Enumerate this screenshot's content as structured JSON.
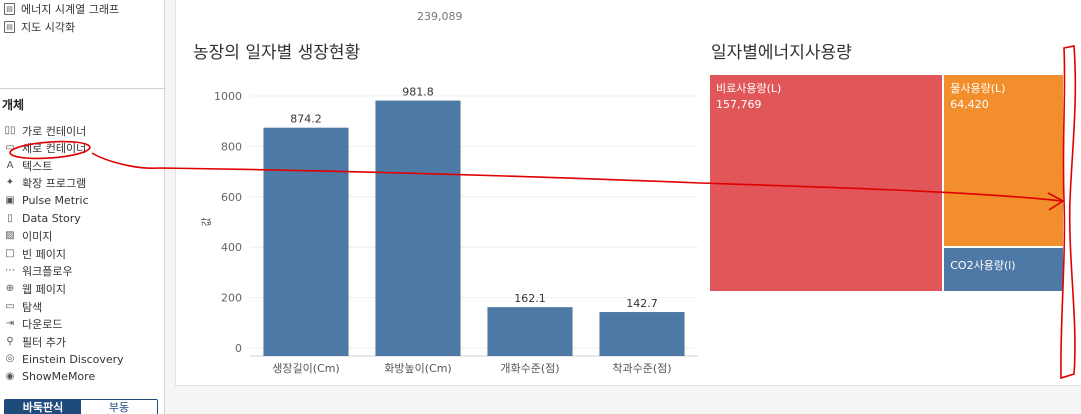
{
  "sidebar": {
    "sheets": [
      {
        "label": "에너지 시계열 그래프"
      },
      {
        "label": "지도 시각화"
      }
    ],
    "objects_heading": "개체",
    "objects": [
      {
        "label": "가로 컨테이너",
        "icon": "horizontal-container-icon",
        "glyph": "▯▯"
      },
      {
        "label": "세로 컨테이너",
        "icon": "vertical-container-icon",
        "glyph": "▭"
      },
      {
        "label": "텍스트",
        "icon": "text-icon",
        "glyph": "A"
      },
      {
        "label": "확장 프로그램",
        "icon": "extension-icon",
        "glyph": "✦"
      },
      {
        "label": "Pulse Metric",
        "icon": "pulse-icon",
        "glyph": "▣"
      },
      {
        "label": "Data Story",
        "icon": "book-icon",
        "glyph": "▯"
      },
      {
        "label": "이미지",
        "icon": "image-icon",
        "glyph": "▨"
      },
      {
        "label": "빈 페이지",
        "icon": "blank-icon",
        "glyph": "□"
      },
      {
        "label": "워크플로우",
        "icon": "workflow-icon",
        "glyph": "⋯"
      },
      {
        "label": "웹 페이지",
        "icon": "globe-icon",
        "glyph": "⊕"
      },
      {
        "label": "탐색",
        "icon": "navigation-icon",
        "glyph": "▭"
      },
      {
        "label": "다운로드",
        "icon": "download-icon",
        "glyph": "⇥"
      },
      {
        "label": "필터 추가",
        "icon": "filter-icon",
        "glyph": "⚲"
      },
      {
        "label": "Einstein Discovery",
        "icon": "einstein-icon",
        "glyph": "◎"
      },
      {
        "label": "ShowMeMore",
        "icon": "showmemore-icon",
        "glyph": "◉"
      }
    ],
    "mode_tiled": "바둑판식",
    "mode_floating": "부동"
  },
  "dashboard": {
    "top_number": "239,089",
    "bar_chart_title": "농장의 일자별 생장현황",
    "treemap_title": "일자별에너지사용량"
  },
  "chart_data": [
    {
      "type": "bar",
      "title": "농장의 일자별 생장현황",
      "categories": [
        "생장길이(Cm)",
        "화방높이(Cm)",
        "개화수준(점)",
        "착과수준(점)"
      ],
      "values": [
        874.2,
        981.8,
        162.1,
        142.7
      ],
      "value_labels": [
        "874.2",
        "981.8",
        "162.1",
        "142.7"
      ],
      "ylabel": "값",
      "ylim": [
        0,
        1000
      ],
      "yticks": [
        0,
        200,
        400,
        600,
        800,
        1000
      ],
      "bar_color": "#4e79a7",
      "grid": true
    },
    {
      "type": "treemap",
      "title": "일자별에너지사용량",
      "cells": [
        {
          "label": "비료사용량(L)",
          "value_label": "157,769",
          "value": 157769,
          "color": "#e15759"
        },
        {
          "label": "물사용량(L)",
          "value_label": "64,420",
          "value": 64420,
          "color": "#f28e2b"
        },
        {
          "label": "CO2사용량(l)",
          "value_label": "",
          "value": 16900,
          "color": "#4e79a7"
        }
      ]
    }
  ]
}
